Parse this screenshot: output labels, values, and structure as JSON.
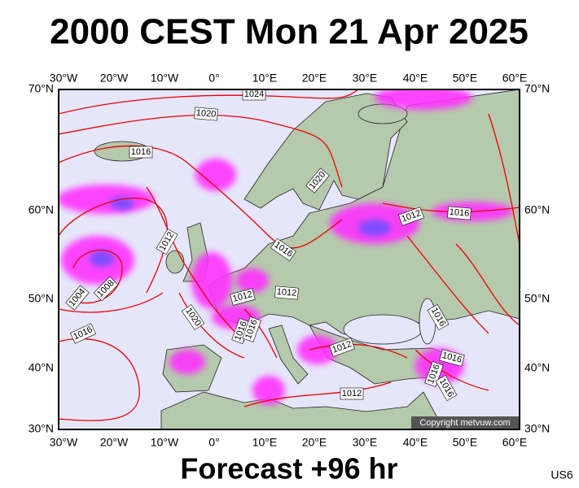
{
  "header": {
    "title": "2000 CEST Mon 21 Apr 2025"
  },
  "map": {
    "lon_labels": [
      "30°W",
      "20°W",
      "10°W",
      "0°",
      "10°E",
      "20°E",
      "30°E",
      "40°E",
      "50°E",
      "60°E"
    ],
    "lat_labels": [
      "70°N",
      "60°N",
      "50°N",
      "40°N",
      "30°N"
    ],
    "isobar_labels": [
      "1024",
      "1020",
      "1016",
      "1020",
      "1012",
      "1016",
      "1012",
      "1016",
      "1012",
      "1012",
      "1008",
      "1004",
      "1016",
      "1020",
      "1016",
      "1016",
      "1016",
      "1016",
      "1012",
      "1016",
      "1016",
      "1012"
    ],
    "copyright": "Copyright metvuw.com"
  },
  "footer": {
    "forecast": "Forecast +96 hr",
    "code": "US6"
  }
}
